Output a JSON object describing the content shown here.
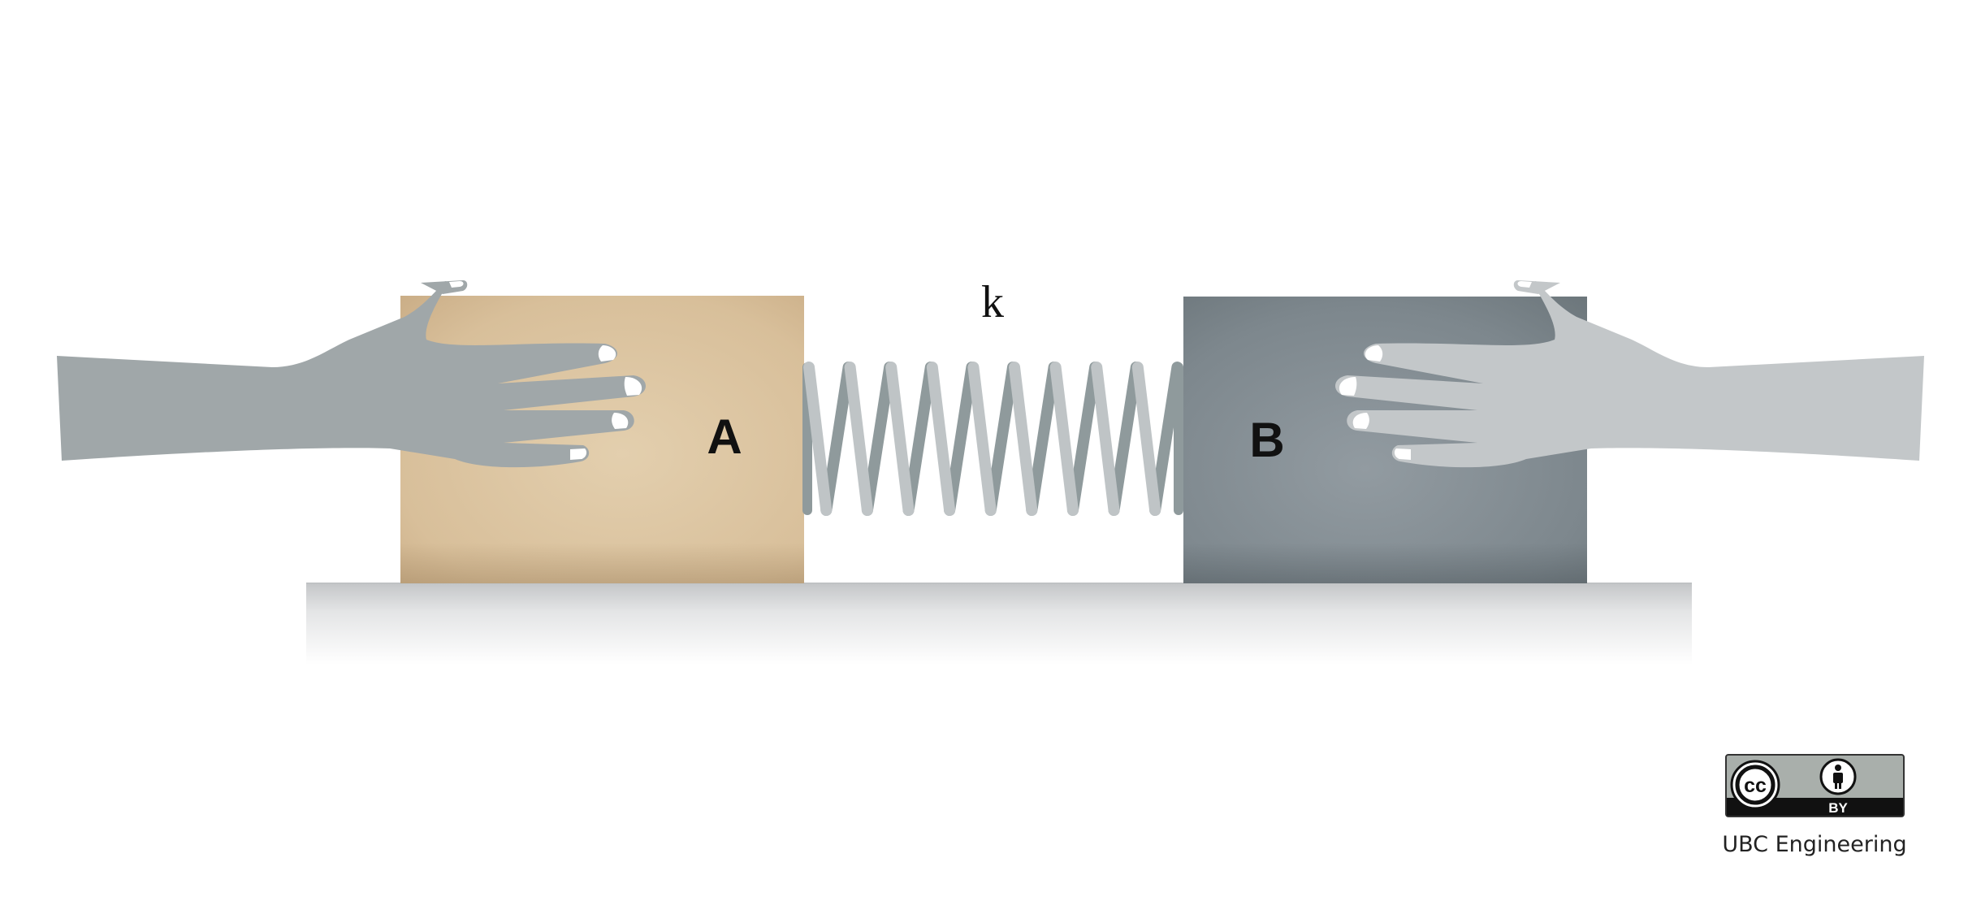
{
  "diagram": {
    "block_a": {
      "label": "A",
      "color": "#d9bf9c"
    },
    "block_b": {
      "label": "B",
      "color": "#7f898f"
    },
    "spring": {
      "label": "k",
      "coils": 9,
      "color": "#bfc4c6",
      "shadow_color": "#8f9a9c"
    },
    "surface": {
      "color": "#c9cbcc"
    },
    "hand_left": {
      "icon": "hand-pushing-right",
      "color": "#a1a8aa"
    },
    "hand_right": {
      "icon": "hand-pushing-left",
      "color": "#c3c7c9"
    }
  },
  "license": {
    "badge_cc": "cc",
    "badge_by": "BY",
    "credit": "UBC Engineering"
  }
}
